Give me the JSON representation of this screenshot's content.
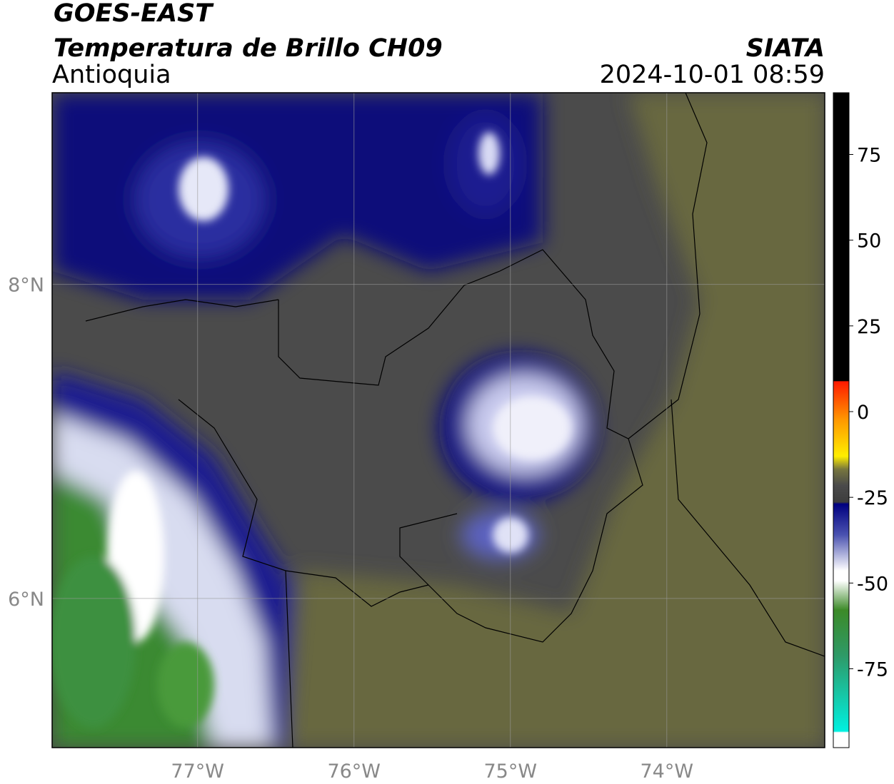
{
  "header": {
    "satellite": "GOES-EAST",
    "product": "Temperatura de Brillo CH09",
    "region": "Antioquia",
    "source": "SIATA",
    "datetime": "2024-10-01 08:59"
  },
  "map": {
    "xlim": [
      -77.93,
      -72.99
    ],
    "ylim": [
      5.05,
      9.22
    ],
    "xticks": [
      {
        "value": -77,
        "label": "77°W"
      },
      {
        "value": -76,
        "label": "76°W"
      },
      {
        "value": -75,
        "label": "75°W"
      },
      {
        "value": -74,
        "label": "74°W"
      }
    ],
    "yticks": [
      {
        "value": 6,
        "label": "6°N"
      },
      {
        "value": 8,
        "label": "8°N"
      }
    ],
    "grid": true
  },
  "colorbar": {
    "lim": [
      -98,
      93
    ],
    "ticks": [
      -75,
      -50,
      -25,
      0,
      25,
      50,
      75
    ]
  }
}
